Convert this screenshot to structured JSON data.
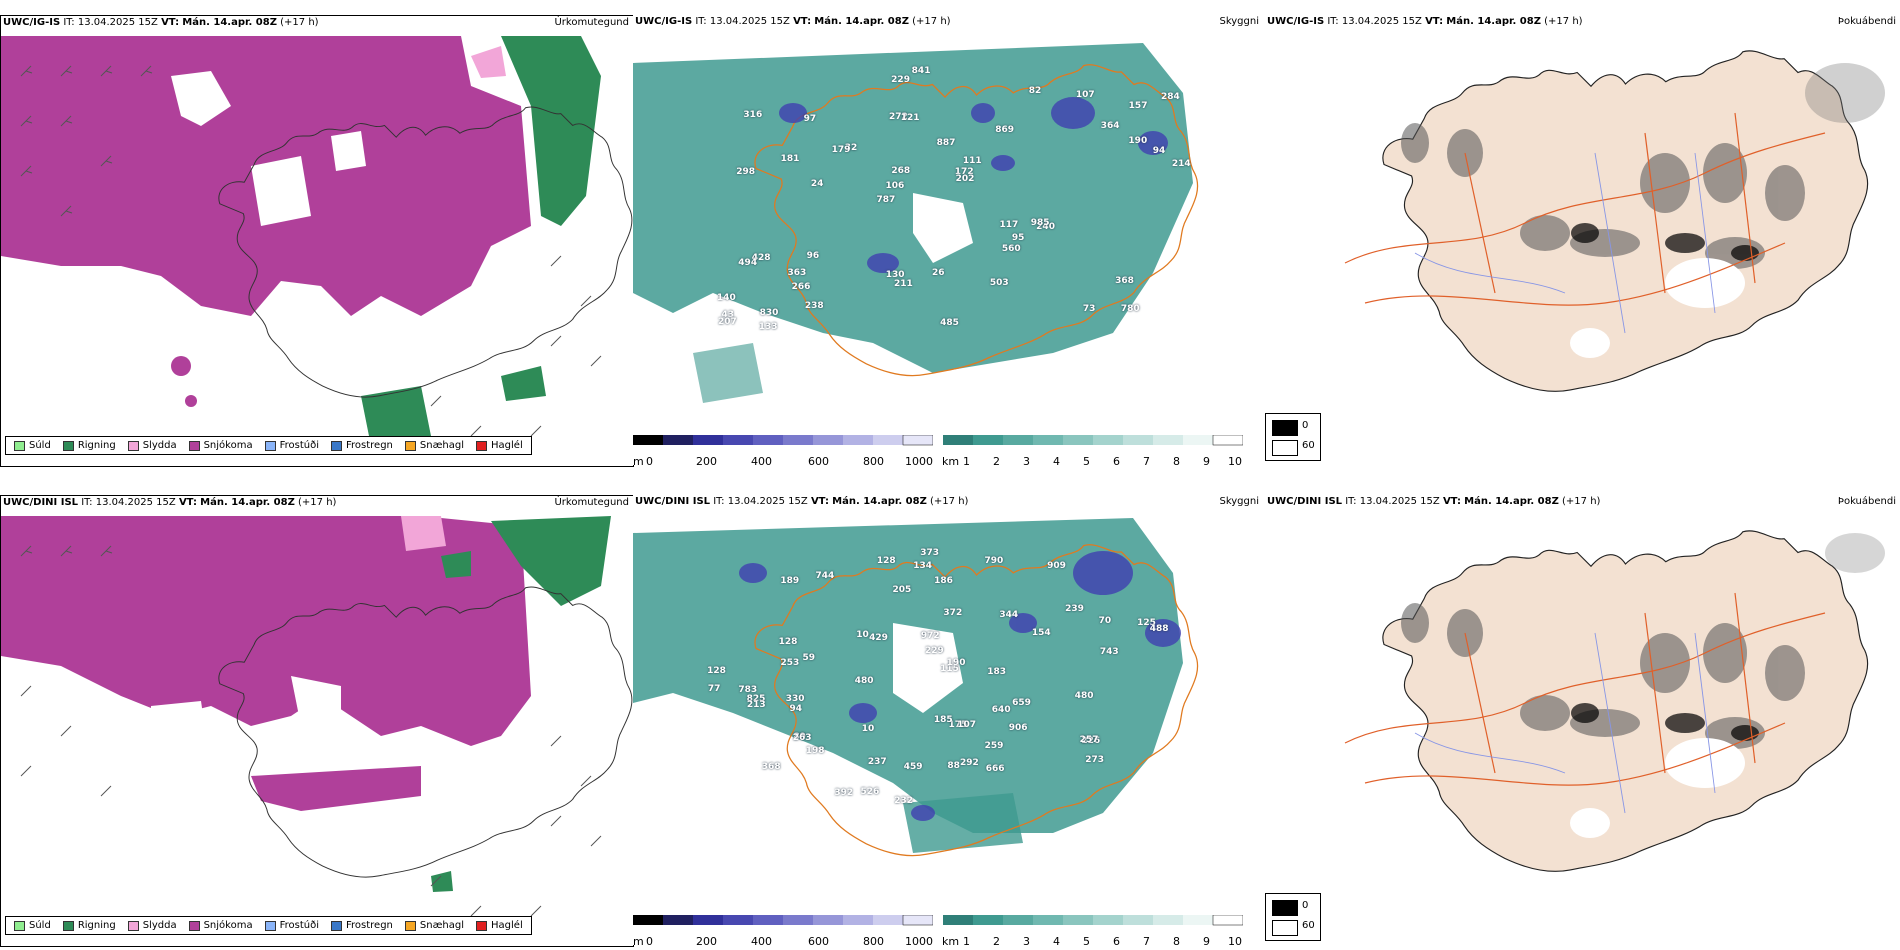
{
  "colors": {
    "snow": "#b0409a",
    "rain": "#2e8b57",
    "drizzle": "#90ee90",
    "sleet": "#f2a6d8",
    "freezing_drizzle": "#8ab4f8",
    "freezing_rain": "#3a78c8",
    "snow_hail": "#f5a623",
    "hail": "#e02020",
    "teal": "#3f9a90",
    "land": "#f3e1d2",
    "roads": "#e0602a",
    "rivers": "#8896e6"
  },
  "rows": [
    {
      "model": "UWC/IG-IS",
      "it_label": "IT:",
      "it_value": "13.04.2025 15Z",
      "vt_label": "VT:",
      "vt_value": "Mán. 14.apr. 08Z",
      "lead": "(+17 h)",
      "panel1_title": "Úrkomutegund",
      "panel2_title": "Skyggni",
      "panel3_title": "Þokuábendi",
      "cloud_labels": [
        "780",
        "298",
        "157",
        "787",
        "869",
        "830",
        "272",
        "887",
        "428",
        "32",
        "140",
        "266",
        "121",
        "111",
        "240",
        "316",
        "229",
        "214",
        "117",
        "190",
        "106",
        "130",
        "268",
        "97",
        "82",
        "96",
        "73",
        "368",
        "985",
        "485",
        "179",
        "181",
        "560",
        "238",
        "94",
        "172",
        "43",
        "211",
        "202",
        "494",
        "364",
        "284",
        "95",
        "503",
        "363",
        "133",
        "207",
        "26",
        "107",
        "841",
        "24"
      ],
      "precip_legend": [
        "Súld",
        "Rigning",
        "Slydda",
        "Snjókoma",
        "Frostúði",
        "Frostregn",
        "Snæhagl",
        "Haglél"
      ],
      "ceiling_unit": "m",
      "ceiling_ticks": [
        "0",
        "200",
        "400",
        "600",
        "800",
        "1000"
      ],
      "vis_unit": "km",
      "vis_ticks": [
        "1",
        "2",
        "3",
        "4",
        "5",
        "6",
        "7",
        "8",
        "9",
        "10"
      ],
      "fog_legend": [
        "0",
        "60"
      ]
    },
    {
      "model": "UWC/DINI ISL",
      "it_label": "IT:",
      "it_value": "13.04.2025 15Z",
      "vt_label": "VT:",
      "vt_value": "Mán. 14.apr. 08Z",
      "lead": "(+17 h)",
      "panel1_title": "Úrkomutegund",
      "panel2_title": "Skyggni",
      "panel3_title": "Þokuábendi",
      "cloud_labels": [
        "368",
        "909",
        "744",
        "239",
        "175",
        "59",
        "94",
        "89",
        "70",
        "154",
        "783",
        "373",
        "906",
        "115",
        "232",
        "128",
        "273",
        "128",
        "263",
        "526",
        "666",
        "134",
        "205",
        "190",
        "229",
        "237",
        "825",
        "790",
        "372",
        "659",
        "128",
        "198",
        "292",
        "185",
        "226",
        "213",
        "125",
        "183",
        "344",
        "480",
        "488",
        "186",
        "459",
        "330",
        "77",
        "253",
        "640",
        "88",
        "10",
        "259",
        "429",
        "392",
        "972",
        "743",
        "480",
        "107",
        "10",
        "257",
        "189"
      ],
      "precip_legend": [
        "Súld",
        "Rigning",
        "Slydda",
        "Snjókoma",
        "Frostúði",
        "Frostregn",
        "Snæhagl",
        "Haglél"
      ],
      "ceiling_unit": "m",
      "ceiling_ticks": [
        "0",
        "200",
        "400",
        "600",
        "800",
        "1000"
      ],
      "vis_unit": "km",
      "vis_ticks": [
        "1",
        "2",
        "3",
        "4",
        "5",
        "6",
        "7",
        "8",
        "9",
        "10"
      ],
      "fog_legend": [
        "0",
        "60"
      ]
    }
  ]
}
